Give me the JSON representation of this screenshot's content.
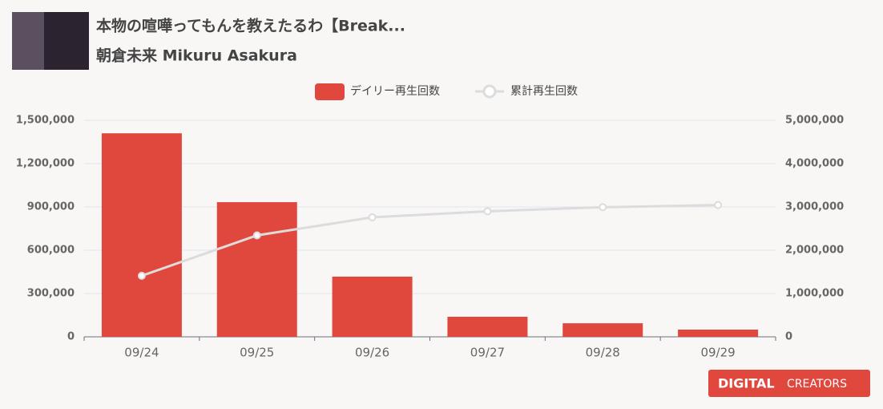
{
  "chart_data": {
    "type": "bar",
    "title": "本物の喧嘩ってもんを教えたるわ【Break...",
    "subtitle": "朝倉未来 Mikuru Asakura",
    "categories": [
      "09/24",
      "09/25",
      "09/26",
      "09/27",
      "09/28",
      "09/29"
    ],
    "series": [
      {
        "name": "デイリー再生回数",
        "type": "bar",
        "color": "#e0483e",
        "values": [
          1410000,
          933000,
          417000,
          139000,
          94000,
          50000
        ]
      },
      {
        "name": "累計再生回数",
        "type": "line",
        "axis": "y2",
        "color": "#dcdcdc",
        "values": [
          1410000,
          2343000,
          2760000,
          2899000,
          2993000,
          3043000
        ]
      }
    ],
    "ylim": [
      0,
      1500000
    ],
    "yticks": [
      0,
      {
        "value": 300000,
        "label": "300,000"
      },
      {
        "value": 600000,
        "label": "600,000"
      },
      {
        "value": 900000,
        "label": "900,000"
      },
      {
        "value": 1200000,
        "label": "1,200,000"
      },
      {
        "value": 1500000,
        "label": "1,500,000"
      }
    ],
    "y2lim": [
      0,
      5000000
    ],
    "y2ticks": [
      0,
      {
        "value": 1000000,
        "label": "1,000,000"
      },
      {
        "value": 2000000,
        "label": "2,000,000"
      },
      {
        "value": 3000000,
        "label": "3,000,000"
      },
      {
        "value": 4000000,
        "label": "4,000,000"
      },
      {
        "value": 5000000,
        "label": "5,000,000"
      }
    ],
    "grid": true,
    "legend": "top"
  },
  "logo": {
    "part1": "DIGITAL",
    "part2": "CREATORS"
  }
}
